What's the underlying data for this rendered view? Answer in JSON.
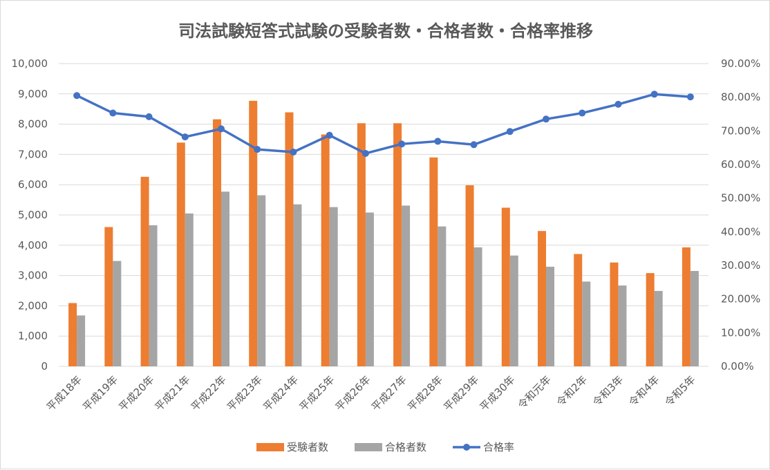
{
  "chart_data": {
    "type": "bar",
    "title": "司法試験短答式試験の受験者数・合格者数・合格率推移",
    "categories": [
      "平成18年",
      "平成19年",
      "平成20年",
      "平成21年",
      "平成22年",
      "平成23年",
      "平成24年",
      "平成25年",
      "平成26年",
      "平成27年",
      "平成28年",
      "平成29年",
      "平成30年",
      "令和元年",
      "令和2年",
      "令和3年",
      "令和4年",
      "令和5年"
    ],
    "series": [
      {
        "name": "受験者数",
        "type": "bar",
        "axis": "left",
        "color": "#ed7d31",
        "values": [
          2090,
          4600,
          6260,
          7390,
          8160,
          8770,
          8390,
          7660,
          8030,
          8030,
          6900,
          5980,
          5240,
          4470,
          3710,
          3430,
          3080,
          3930
        ]
      },
      {
        "name": "合格者数",
        "type": "bar",
        "axis": "left",
        "color": "#a5a5a5",
        "values": [
          1680,
          3480,
          4660,
          5050,
          5770,
          5650,
          5350,
          5260,
          5080,
          5310,
          4620,
          3930,
          3660,
          3290,
          2800,
          2670,
          2490,
          3150
        ]
      },
      {
        "name": "合格率",
        "type": "line",
        "axis": "right",
        "color": "#4472c4",
        "values": [
          80.5,
          75.3,
          74.2,
          68.2,
          70.6,
          64.5,
          63.7,
          68.7,
          63.3,
          66.1,
          66.9,
          65.9,
          69.8,
          73.5,
          75.3,
          77.9,
          80.9,
          80.1
        ]
      }
    ],
    "left_axis": {
      "ylim": [
        0,
        10000
      ],
      "ticks": [
        "0",
        "1,000",
        "2,000",
        "3,000",
        "4,000",
        "5,000",
        "6,000",
        "7,000",
        "8,000",
        "9,000",
        "10,000"
      ]
    },
    "right_axis": {
      "ylim": [
        0,
        90
      ],
      "ticks": [
        "0.00%",
        "10.00%",
        "20.00%",
        "30.00%",
        "40.00%",
        "50.00%",
        "60.00%",
        "70.00%",
        "80.00%",
        "90.00%"
      ]
    },
    "grid": true,
    "legend_position": "bottom"
  }
}
